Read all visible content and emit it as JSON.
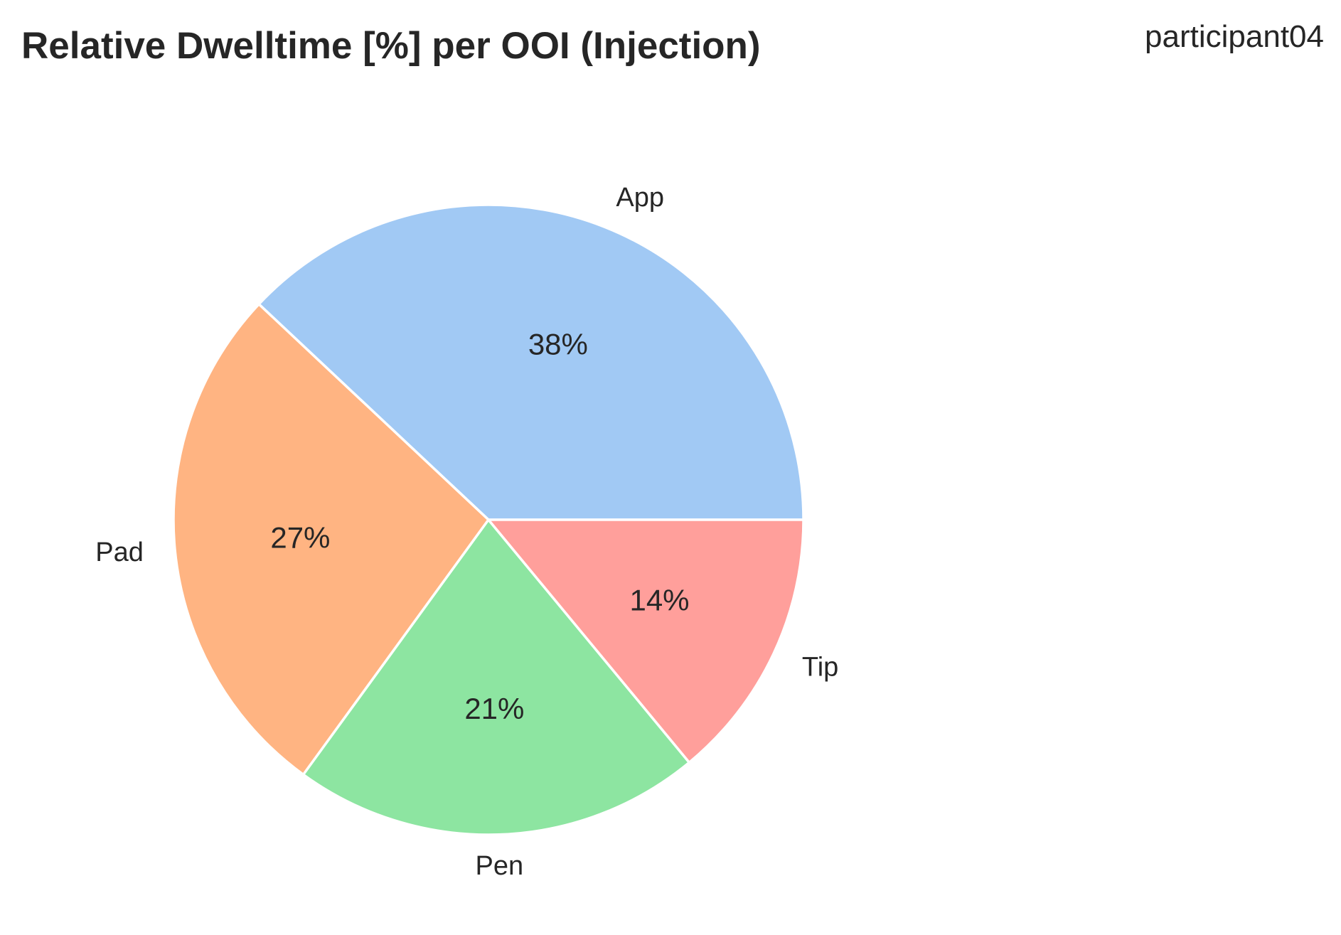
{
  "chart_data": {
    "type": "pie",
    "title": "Relative Dwelltime [%] per OOI (Injection)",
    "subtitle": "participant04",
    "categories": [
      "App",
      "Pad",
      "Pen",
      "Tip"
    ],
    "values": [
      38,
      27,
      21,
      14
    ],
    "value_labels": [
      "38%",
      "27%",
      "21%",
      "14%"
    ],
    "colors": [
      "#a1c9f4",
      "#ffb482",
      "#8de5a1",
      "#ff9f9b"
    ],
    "edge_color": "#ffffff",
    "start_angle_deg": 0,
    "direction": "counterclockwise",
    "legend": "none"
  }
}
